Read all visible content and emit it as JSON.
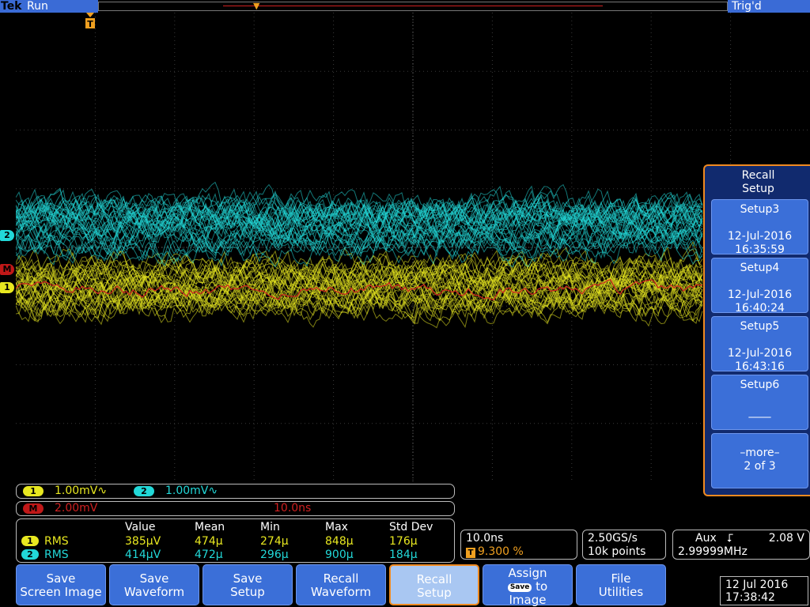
{
  "status": {
    "brand": "Tek",
    "run_state": "Run",
    "trigger_state": "Trig'd"
  },
  "markers": {
    "ch1": "1",
    "ch2": "2",
    "math": "M",
    "trigger": "T"
  },
  "colors": {
    "ch1": "#e8e820",
    "ch2": "#22d8d8",
    "math": "#d02020",
    "trigger": "#f0a020",
    "menu_blue": "#3b6fd8"
  },
  "side_menu": {
    "title_line1": "Recall",
    "title_line2": "Setup",
    "items": [
      {
        "name": "Setup3",
        "date": "12-Jul-2016",
        "time": "16:35:59"
      },
      {
        "name": "Setup4",
        "date": "12-Jul-2016",
        "time": "16:40:24"
      },
      {
        "name": "Setup5",
        "date": "12-Jul-2016",
        "time": "16:43:16"
      },
      {
        "name": "Setup6",
        "date": "",
        "time": "____"
      }
    ],
    "more_line1": "–more–",
    "more_line2": "2 of 3"
  },
  "channels": {
    "ch1_label": "1",
    "ch1_scale": "1.00mV∿",
    "ch2_label": "2",
    "ch2_scale": "1.00mV∿",
    "math_label": "M",
    "math_scale": "2.00mV",
    "math_time": "10.0ns"
  },
  "measurements": {
    "headers": [
      "Value",
      "Mean",
      "Min",
      "Max",
      "Std Dev"
    ],
    "rows": [
      {
        "ch": "1",
        "type": "RMS",
        "value": "385µV",
        "mean": "474µ",
        "min": "274µ",
        "max": "848µ",
        "std": "176µ"
      },
      {
        "ch": "2",
        "type": "RMS",
        "value": "414µV",
        "mean": "472µ",
        "min": "296µ",
        "max": "900µ",
        "std": "184µ"
      }
    ]
  },
  "horizontal": {
    "scale": "10.0ns",
    "position": "9.300 %"
  },
  "acquisition": {
    "rate": "2.50GS/s",
    "points": "10k points"
  },
  "trigger": {
    "source": "Aux",
    "slope": "⮦",
    "level": "2.08 V",
    "freq": "2.99999MHz"
  },
  "bottom_menu": {
    "save_screen_1": "Save",
    "save_screen_2": "Screen Image",
    "save_wave_1": "Save",
    "save_wave_2": "Waveform",
    "save_setup_1": "Save",
    "save_setup_2": "Setup",
    "recall_wave_1": "Recall",
    "recall_wave_2": "Waveform",
    "recall_setup_1": "Recall",
    "recall_setup_2": "Setup",
    "assign_1": "Assign",
    "assign_pill": "Save",
    "assign_to": "to",
    "assign_3": "Image",
    "file_1": "File",
    "file_2": "Utilities"
  },
  "datetime": {
    "date": "12 Jul  2016",
    "time": "17:38:42"
  }
}
